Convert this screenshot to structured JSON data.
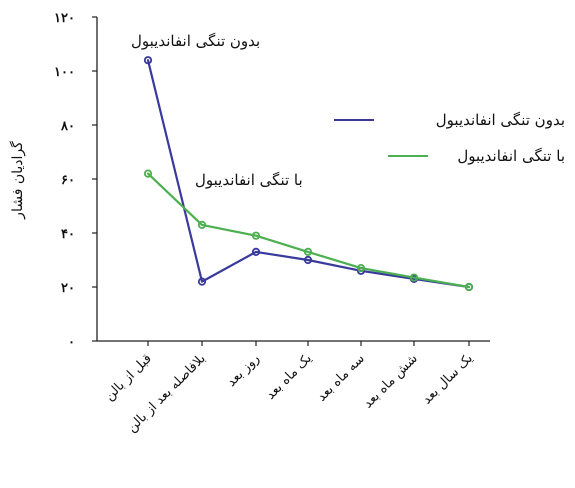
{
  "chart_data": {
    "type": "line",
    "title": "",
    "xlabel": "",
    "ylabel": "گرادیان فشار",
    "categories": [
      "قبل از بالن",
      "بلافاصله بعد از بالن",
      "روز بعد",
      "یک ماه بعد",
      "سه ماه بعد",
      "شش ماه بعد",
      "یک سال بعد"
    ],
    "yticks": [
      "۰",
      "۲۰",
      "۴۰",
      "۶۰",
      "۸۰",
      "۱۰۰",
      "۱۲۰"
    ],
    "ylim": [
      0,
      120
    ],
    "grid": false,
    "legend_placement": "right",
    "series": [
      {
        "name": "بدون تنگی انفاندیبول",
        "color": "#3a3a9c",
        "values": [
          104,
          22,
          33,
          30,
          26,
          23,
          20
        ]
      },
      {
        "name": "با تنگی انفاندیبول",
        "color": "#4caf50",
        "values": [
          62,
          43,
          39,
          33,
          27,
          23.5,
          20
        ]
      }
    ],
    "annotations": [
      {
        "text": "بدون تنگی انفاندیبول",
        "series": 0,
        "at_category": 0
      },
      {
        "text": "با تنگی انفاندیبول",
        "series": 1,
        "at_category": 1
      }
    ]
  }
}
